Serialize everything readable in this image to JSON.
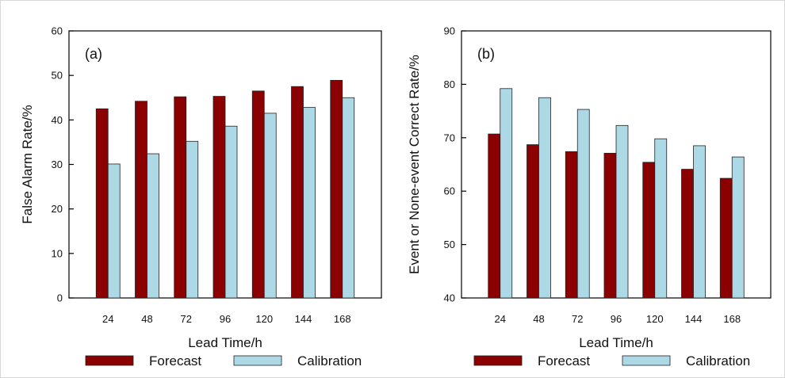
{
  "chart_data": [
    {
      "type": "bar",
      "panel_label": "(a)",
      "categories": [
        "24",
        "48",
        "72",
        "96",
        "120",
        "144",
        "168"
      ],
      "series": [
        {
          "name": "Forecast",
          "color": "#8b0000",
          "values": [
            42.5,
            44.2,
            45.2,
            45.3,
            46.5,
            47.5,
            48.9
          ]
        },
        {
          "name": "Calibration",
          "color": "#add8e6",
          "values": [
            30.1,
            32.4,
            35.2,
            38.6,
            41.5,
            42.8,
            45.0
          ]
        }
      ],
      "xlabel": "Lead Time/h",
      "ylabel": "False Alarm Rate/%",
      "ylim": [
        0,
        60
      ],
      "yticks": [
        0,
        10,
        20,
        30,
        40,
        50,
        60
      ],
      "grid": false,
      "legend_position": "bottom"
    },
    {
      "type": "bar",
      "panel_label": "(b)",
      "categories": [
        "24",
        "48",
        "72",
        "96",
        "120",
        "144",
        "168"
      ],
      "series": [
        {
          "name": "Forecast",
          "color": "#8b0000",
          "values": [
            70.7,
            68.7,
            67.4,
            67.1,
            65.4,
            64.1,
            62.4
          ]
        },
        {
          "name": "Calibration",
          "color": "#add8e6",
          "values": [
            79.2,
            77.5,
            75.3,
            72.3,
            69.8,
            68.5,
            66.4
          ]
        }
      ],
      "xlabel": "Lead Time/h",
      "ylabel": "Event or None-event Correct Rate/%",
      "ylim": [
        40,
        90
      ],
      "yticks": [
        40,
        50,
        60,
        70,
        80,
        90
      ],
      "grid": false,
      "legend_position": "bottom"
    }
  ]
}
